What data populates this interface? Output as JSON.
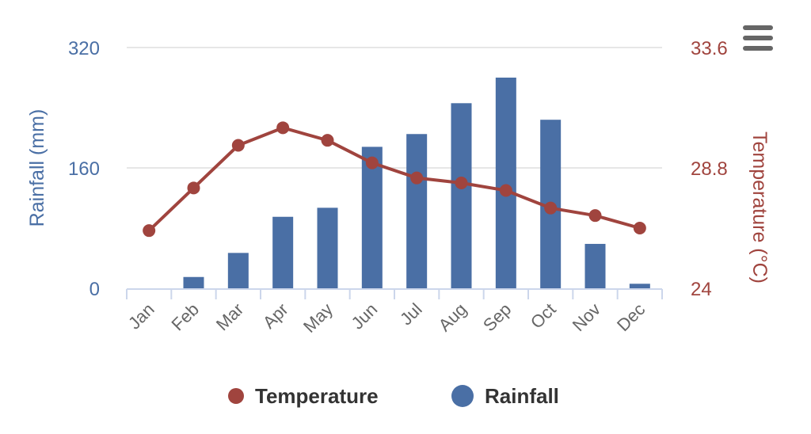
{
  "chart_data": {
    "type": "bar",
    "categories": [
      "Jan",
      "Feb",
      "Mar",
      "Apr",
      "May",
      "Jun",
      "Jul",
      "Aug",
      "Sep",
      "Oct",
      "Nov",
      "Dec"
    ],
    "series": [
      {
        "name": "Rainfall",
        "type": "bar",
        "axis": "left",
        "values": [
          0,
          15,
          47,
          95,
          107,
          188,
          205,
          246,
          280,
          224,
          59,
          6
        ]
      },
      {
        "name": "Temperature",
        "type": "line",
        "axis": "right",
        "values": [
          26.3,
          28.0,
          29.7,
          30.4,
          29.9,
          29.0,
          28.4,
          28.2,
          27.9,
          27.2,
          26.9,
          26.4
        ]
      }
    ],
    "y_left": {
      "label": "Rainfall (mm)",
      "range": [
        0,
        320
      ],
      "ticks": [
        "0",
        "160",
        "320"
      ]
    },
    "y_right": {
      "label": "Temperature (°C)",
      "range": [
        24,
        33.6
      ],
      "ticks": [
        "24",
        "28.8",
        "33.6"
      ]
    },
    "grid": true,
    "legend_position": "bottom-center",
    "colors": {
      "rainfall": "#4a6fa5",
      "temperature": "#a0443e"
    }
  },
  "menu_icon": "hamburger-menu-icon"
}
